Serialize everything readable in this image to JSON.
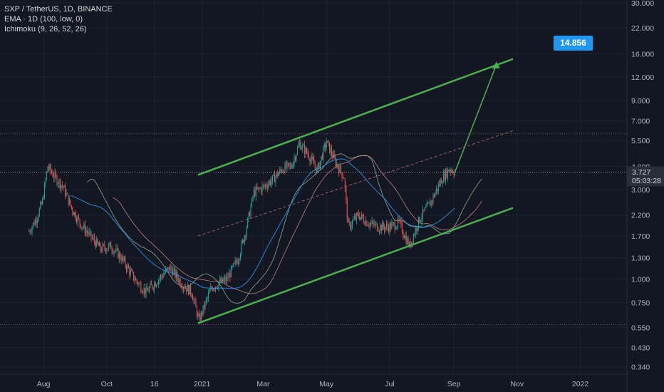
{
  "legend": {
    "symbol": "SXP / TetherUS, 1D, BINANCE",
    "ema": "EMA · 1D (100, low, 0)",
    "ichimoku": "Ichimoku (9, 26, 52, 26)"
  },
  "price_axis": [
    "30.000",
    "22.000",
    "16.000",
    "12.000",
    "9.000",
    "7.000",
    "5.500",
    "4.000",
    "3.000",
    "2.200",
    "1.700",
    "1.300",
    "1.000",
    "0.750",
    "0.550",
    "0.430",
    "0.340"
  ],
  "time_axis": [
    "Aug",
    "Oct",
    "16",
    "2021",
    "Mar",
    "May",
    "Jul",
    "Sep",
    "Nov",
    "2022"
  ],
  "current_price": "3.727",
  "countdown": "05:03:28",
  "target_label": "14.856",
  "colors": {
    "background": "#131722",
    "up": "#26a69a",
    "down": "#ef5350",
    "channel": "#4caf50",
    "ema": "#2196f3",
    "target": "#2196f3"
  },
  "chart_data": {
    "type": "candlestick",
    "y_scale": "log",
    "ylim": [
      0.31,
      31
    ],
    "x_ticks": [
      "Aug",
      "Oct",
      "16",
      "2021",
      "Mar",
      "May",
      "Jul",
      "Sep",
      "Nov",
      "2022"
    ],
    "y_ticks": [
      30,
      22,
      16,
      12,
      9,
      7,
      5.5,
      4,
      3,
      2.2,
      1.7,
      1.3,
      1,
      0.75,
      0.55,
      0.43,
      0.34
    ],
    "price_path": [
      [
        "2020-07-18",
        1.8
      ],
      [
        "2020-07-25",
        2.1
      ],
      [
        "2020-07-31",
        2.6
      ],
      [
        "2020-08-05",
        4.0
      ],
      [
        "2020-08-12",
        3.5
      ],
      [
        "2020-08-20",
        3.1
      ],
      [
        "2020-08-28",
        2.4
      ],
      [
        "2020-09-05",
        2.0
      ],
      [
        "2020-09-15",
        1.7
      ],
      [
        "2020-09-25",
        1.45
      ],
      [
        "2020-10-05",
        1.5
      ],
      [
        "2020-10-15",
        1.3
      ],
      [
        "2020-10-28",
        1.0
      ],
      [
        "2020-11-08",
        0.85
      ],
      [
        "2020-11-20",
        1.0
      ],
      [
        "2020-12-01",
        1.15
      ],
      [
        "2020-12-12",
        0.95
      ],
      [
        "2020-12-22",
        0.85
      ],
      [
        "2020-12-29",
        0.6
      ],
      [
        "2021-01-10",
        0.9
      ],
      [
        "2021-01-25",
        1.0
      ],
      [
        "2021-02-05",
        1.3
      ],
      [
        "2021-02-12",
        1.8
      ],
      [
        "2021-02-20",
        2.9
      ],
      [
        "2021-03-01",
        3.1
      ],
      [
        "2021-03-10",
        3.4
      ],
      [
        "2021-03-20",
        3.9
      ],
      [
        "2021-03-28",
        4.0
      ],
      [
        "2021-04-05",
        5.3
      ],
      [
        "2021-04-14",
        4.6
      ],
      [
        "2021-04-22",
        3.8
      ],
      [
        "2021-05-01",
        5.4
      ],
      [
        "2021-05-10",
        4.2
      ],
      [
        "2021-05-18",
        3.5
      ],
      [
        "2021-05-22",
        1.9
      ],
      [
        "2021-06-01",
        2.2
      ],
      [
        "2021-06-10",
        2.0
      ],
      [
        "2021-06-20",
        1.9
      ],
      [
        "2021-07-01",
        1.9
      ],
      [
        "2021-07-10",
        2.0
      ],
      [
        "2021-07-20",
        1.5
      ],
      [
        "2021-07-30",
        2.1
      ],
      [
        "2021-08-10",
        2.6
      ],
      [
        "2021-08-20",
        3.4
      ],
      [
        "2021-08-28",
        3.9
      ],
      [
        "2021-09-02",
        3.727
      ]
    ],
    "channel_upper": [
      [
        "2020-12-28",
        3.6
      ],
      [
        "2021-04-25",
        5.7
      ],
      [
        "2021-10-28",
        15.0
      ]
    ],
    "channel_lower": [
      [
        "2020-12-28",
        0.58
      ],
      [
        "2021-10-28",
        2.4
      ]
    ],
    "projection": [
      [
        "2021-09-02",
        3.727
      ],
      [
        "2021-10-12",
        14.0
      ]
    ],
    "target": 14.856,
    "current": 3.727
  }
}
